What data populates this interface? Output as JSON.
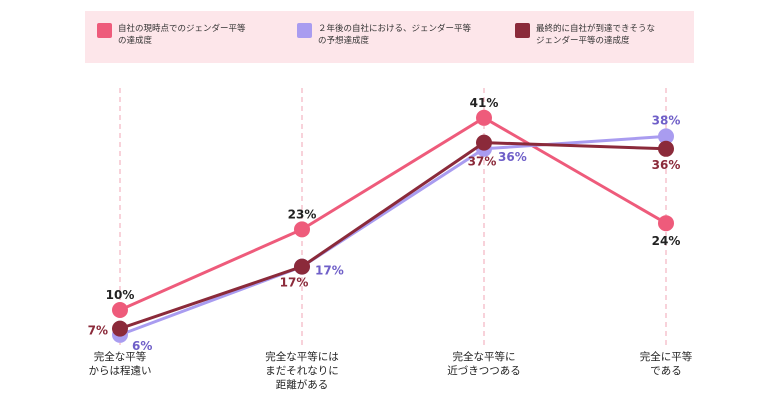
{
  "colors": {
    "current": "#ee5b7b",
    "future": "#a99cf0",
    "final": "#8b2a3a",
    "guide": "#f2a5b5",
    "legend_bg": "#fde6ea"
  },
  "chart_data": {
    "type": "line",
    "categories": [
      "完全な平等\nからは程遠い",
      "完全な平等には\nまだそれなりに\n距離がある",
      "完全な平等に\n近づきつつある",
      "完全に平等\nである"
    ],
    "series": [
      {
        "name": "自社の現時点でのジェンダー平等\nの達成度",
        "key": "current",
        "values": [
          10,
          23,
          41,
          24
        ],
        "labels": [
          "10%",
          "23%",
          "41%",
          "24%"
        ]
      },
      {
        "name": "２年後の自社における、ジェンダー平等\nの予想達成度",
        "key": "future",
        "values": [
          6,
          17,
          36,
          38
        ],
        "labels": [
          "6%",
          "17%",
          "36%",
          "38%"
        ]
      },
      {
        "name": "最終的に自社が到達できそうな\nジェンダー平等の達成度",
        "key": "final",
        "values": [
          7,
          17,
          37,
          36
        ],
        "labels": [
          "7%",
          "17%",
          "37%",
          "36%"
        ]
      }
    ],
    "ylim": [
      0,
      45
    ],
    "grid": "vertical dashed guides",
    "legend_placement": "top"
  }
}
